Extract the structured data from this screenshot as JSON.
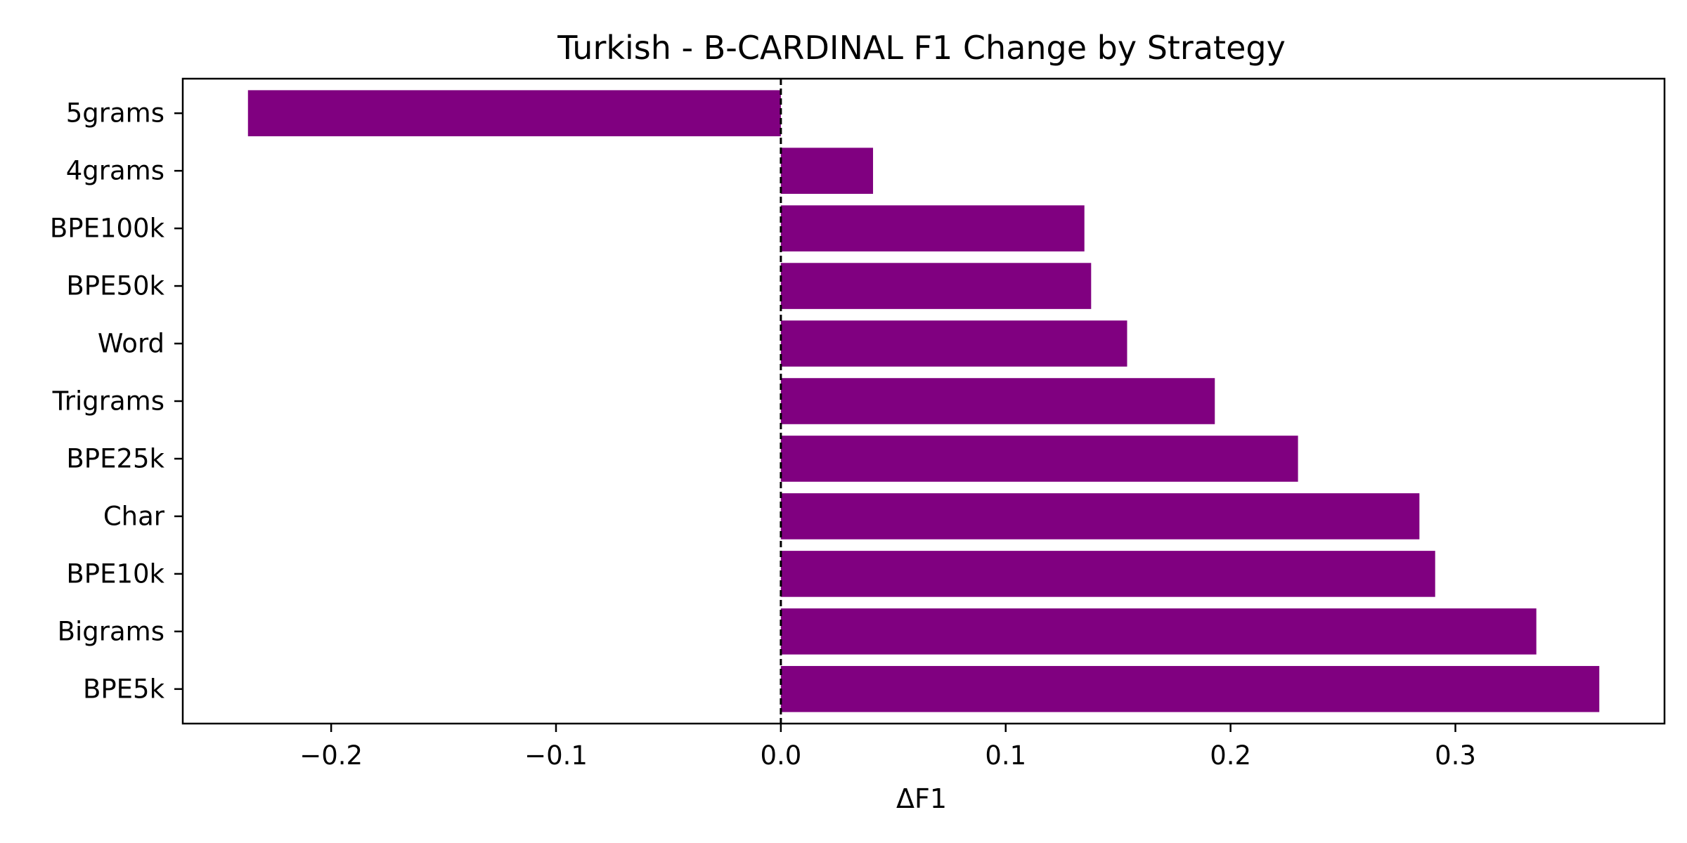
{
  "chart_data": {
    "type": "bar",
    "orientation": "horizontal",
    "title": "Turkish - B-CARDINAL F1 Change by Strategy",
    "xlabel": "ΔF1",
    "ylabel": "",
    "categories": [
      "5grams",
      "4grams",
      "BPE100k",
      "BPE50k",
      "Word",
      "Trigrams",
      "BPE25k",
      "Char",
      "BPE10k",
      "Bigrams",
      "BPE5k"
    ],
    "values": [
      -0.237,
      0.041,
      0.135,
      0.138,
      0.154,
      0.193,
      0.23,
      0.284,
      0.291,
      0.336,
      0.364
    ],
    "xlim": [
      -0.266,
      0.393
    ],
    "xticks": [
      -0.2,
      -0.1,
      0.0,
      0.1,
      0.2,
      0.3
    ],
    "xtick_labels": [
      "−0.2",
      "−0.1",
      "0.0",
      "0.1",
      "0.2",
      "0.3"
    ],
    "reference_line": {
      "x": 0.0,
      "style": "dashed",
      "color": "#000000"
    },
    "bar_color": "#800080",
    "grid": false,
    "legend": "none"
  }
}
